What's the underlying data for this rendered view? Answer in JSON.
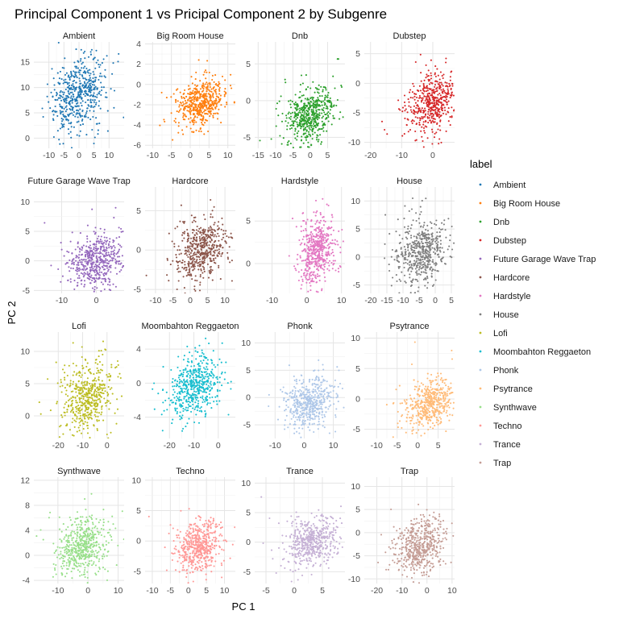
{
  "chart_data": {
    "type": "scatter",
    "title": "Principal Component 1 vs Pricipal Component 2 by Subgenre",
    "xlabel": "PC 1",
    "ylabel": "PC 2",
    "legend": {
      "title": "label",
      "position": "right"
    },
    "grid": true,
    "facets": [
      {
        "name": "Ambient",
        "color": "#1f77b4",
        "xlim": [
          -15,
          15
        ],
        "ylim": [
          -2,
          19
        ],
        "xticks": [
          -10,
          -5,
          0,
          5,
          10
        ],
        "yticks": [
          0,
          5,
          10,
          15
        ],
        "center": [
          0,
          9
        ],
        "spread": [
          4.5,
          3.5
        ]
      },
      {
        "name": "Big Room House",
        "color": "#ff7f0e",
        "xlim": [
          -12,
          12
        ],
        "ylim": [
          -6.3,
          4.2
        ],
        "xticks": [
          -10,
          -5,
          0,
          5,
          10
        ],
        "yticks": [
          -6,
          -4,
          -2,
          0,
          2,
          4
        ],
        "center": [
          3,
          -1.8
        ],
        "spread": [
          3,
          1.1
        ]
      },
      {
        "name": "Dnb",
        "color": "#2ca02c",
        "xlim": [
          -16,
          10
        ],
        "ylim": [
          -6.5,
          8
        ],
        "xticks": [
          -15,
          -10,
          -5,
          0,
          5
        ],
        "yticks": [
          -5,
          0,
          5
        ],
        "center": [
          0,
          -2
        ],
        "spread": [
          3.5,
          1.8
        ]
      },
      {
        "name": "Dubstep",
        "color": "#d62728",
        "xlim": [
          -22,
          7
        ],
        "ylim": [
          -11,
          7
        ],
        "xticks": [
          -20,
          -10,
          0
        ],
        "yticks": [
          -10,
          -5,
          0,
          5
        ],
        "center": [
          0,
          -3
        ],
        "spread": [
          4,
          2.5
        ]
      },
      {
        "name": "Future Garage Wave Trap",
        "color": "#9467bd",
        "xlim": [
          -18,
          8
        ],
        "ylim": [
          -5.5,
          12.5
        ],
        "xticks": [
          -10,
          0
        ],
        "yticks": [
          -5,
          0,
          5,
          10
        ],
        "center": [
          0,
          0
        ],
        "spread": [
          4,
          2.2
        ]
      },
      {
        "name": "Hardcore",
        "color": "#8c564b",
        "xlim": [
          -13,
          13
        ],
        "ylim": [
          -5.5,
          8
        ],
        "xticks": [
          -10,
          -5,
          0,
          5,
          10
        ],
        "yticks": [
          -5,
          0,
          5
        ],
        "center": [
          3,
          0
        ],
        "spread": [
          3.5,
          1.7
        ]
      },
      {
        "name": "Hardstyle",
        "color": "#e377c2",
        "xlim": [
          -15,
          11
        ],
        "ylim": [
          -3.5,
          9
        ],
        "xticks": [
          -10,
          0,
          10
        ],
        "yticks": [
          0,
          5
        ],
        "center": [
          3,
          1.5
        ],
        "spread": [
          2.5,
          1.8
        ]
      },
      {
        "name": "House",
        "color": "#7f7f7f",
        "xlim": [
          -22,
          6
        ],
        "ylim": [
          -6.5,
          12.5
        ],
        "xticks": [
          -20,
          -15,
          -10,
          -5,
          0,
          5
        ],
        "yticks": [
          -5,
          0,
          5,
          10
        ],
        "center": [
          -4,
          1
        ],
        "spread": [
          4,
          2.8
        ]
      },
      {
        "name": "Lofi",
        "color": "#bcbd22",
        "xlim": [
          -30,
          7
        ],
        "ylim": [
          -3.5,
          13
        ],
        "xticks": [
          -20,
          -10,
          0
        ],
        "yticks": [
          0,
          5,
          10
        ],
        "center": [
          -8,
          3
        ],
        "spread": [
          5,
          2.5
        ]
      },
      {
        "name": "Moombahton Reggaeton",
        "color": "#17becf",
        "xlim": [
          -30,
          7
        ],
        "ylim": [
          -6.5,
          6
        ],
        "xticks": [
          -20,
          -10,
          0
        ],
        "yticks": [
          -4,
          0,
          4
        ],
        "center": [
          -10,
          -0.5
        ],
        "spread": [
          5,
          1.7
        ]
      },
      {
        "name": "Phonk",
        "color": "#aec7e8",
        "xlim": [
          -17,
          14
        ],
        "ylim": [
          -7.5,
          12
        ],
        "xticks": [
          -10,
          0,
          10
        ],
        "yticks": [
          -5,
          0,
          5,
          10
        ],
        "center": [
          2,
          -1
        ],
        "spread": [
          4,
          2.2
        ]
      },
      {
        "name": "Psytrance",
        "color": "#ffbb78",
        "xlim": [
          -13,
          9
        ],
        "ylim": [
          -6.5,
          11
        ],
        "xticks": [
          -10,
          -5,
          0,
          5
        ],
        "yticks": [
          -5,
          0,
          5,
          10
        ],
        "center": [
          3,
          -1
        ],
        "spread": [
          3,
          2
        ]
      },
      {
        "name": "Synthwave",
        "color": "#98df8a",
        "xlim": [
          -18,
          12
        ],
        "ylim": [
          -4.5,
          12.5
        ],
        "xticks": [
          -10,
          0,
          10
        ],
        "yticks": [
          -4,
          0,
          4,
          8,
          12
        ],
        "center": [
          -2,
          1.5
        ],
        "spread": [
          4,
          2.2
        ]
      },
      {
        "name": "Techno",
        "color": "#ff9896",
        "xlim": [
          -12,
          13
        ],
        "ylim": [
          -7,
          10.5
        ],
        "xticks": [
          -10,
          -5,
          0,
          5,
          10
        ],
        "yticks": [
          -5,
          0,
          5,
          10
        ],
        "center": [
          3,
          -1
        ],
        "spread": [
          3,
          2
        ]
      },
      {
        "name": "Trance",
        "color": "#c5b0d5",
        "xlim": [
          -7,
          9
        ],
        "ylim": [
          -7,
          11
        ],
        "xticks": [
          -5,
          0,
          5
        ],
        "yticks": [
          -5,
          0,
          5,
          10
        ],
        "center": [
          3,
          0
        ],
        "spread": [
          2.3,
          2
        ]
      },
      {
        "name": "Trap",
        "color": "#c49c94",
        "xlim": [
          -25,
          11
        ],
        "ylim": [
          -11,
          12
        ],
        "xticks": [
          -20,
          -10,
          0,
          10
        ],
        "yticks": [
          -10,
          -5,
          0,
          5,
          10
        ],
        "center": [
          -3,
          -3
        ],
        "spread": [
          5,
          2.8
        ]
      }
    ]
  }
}
